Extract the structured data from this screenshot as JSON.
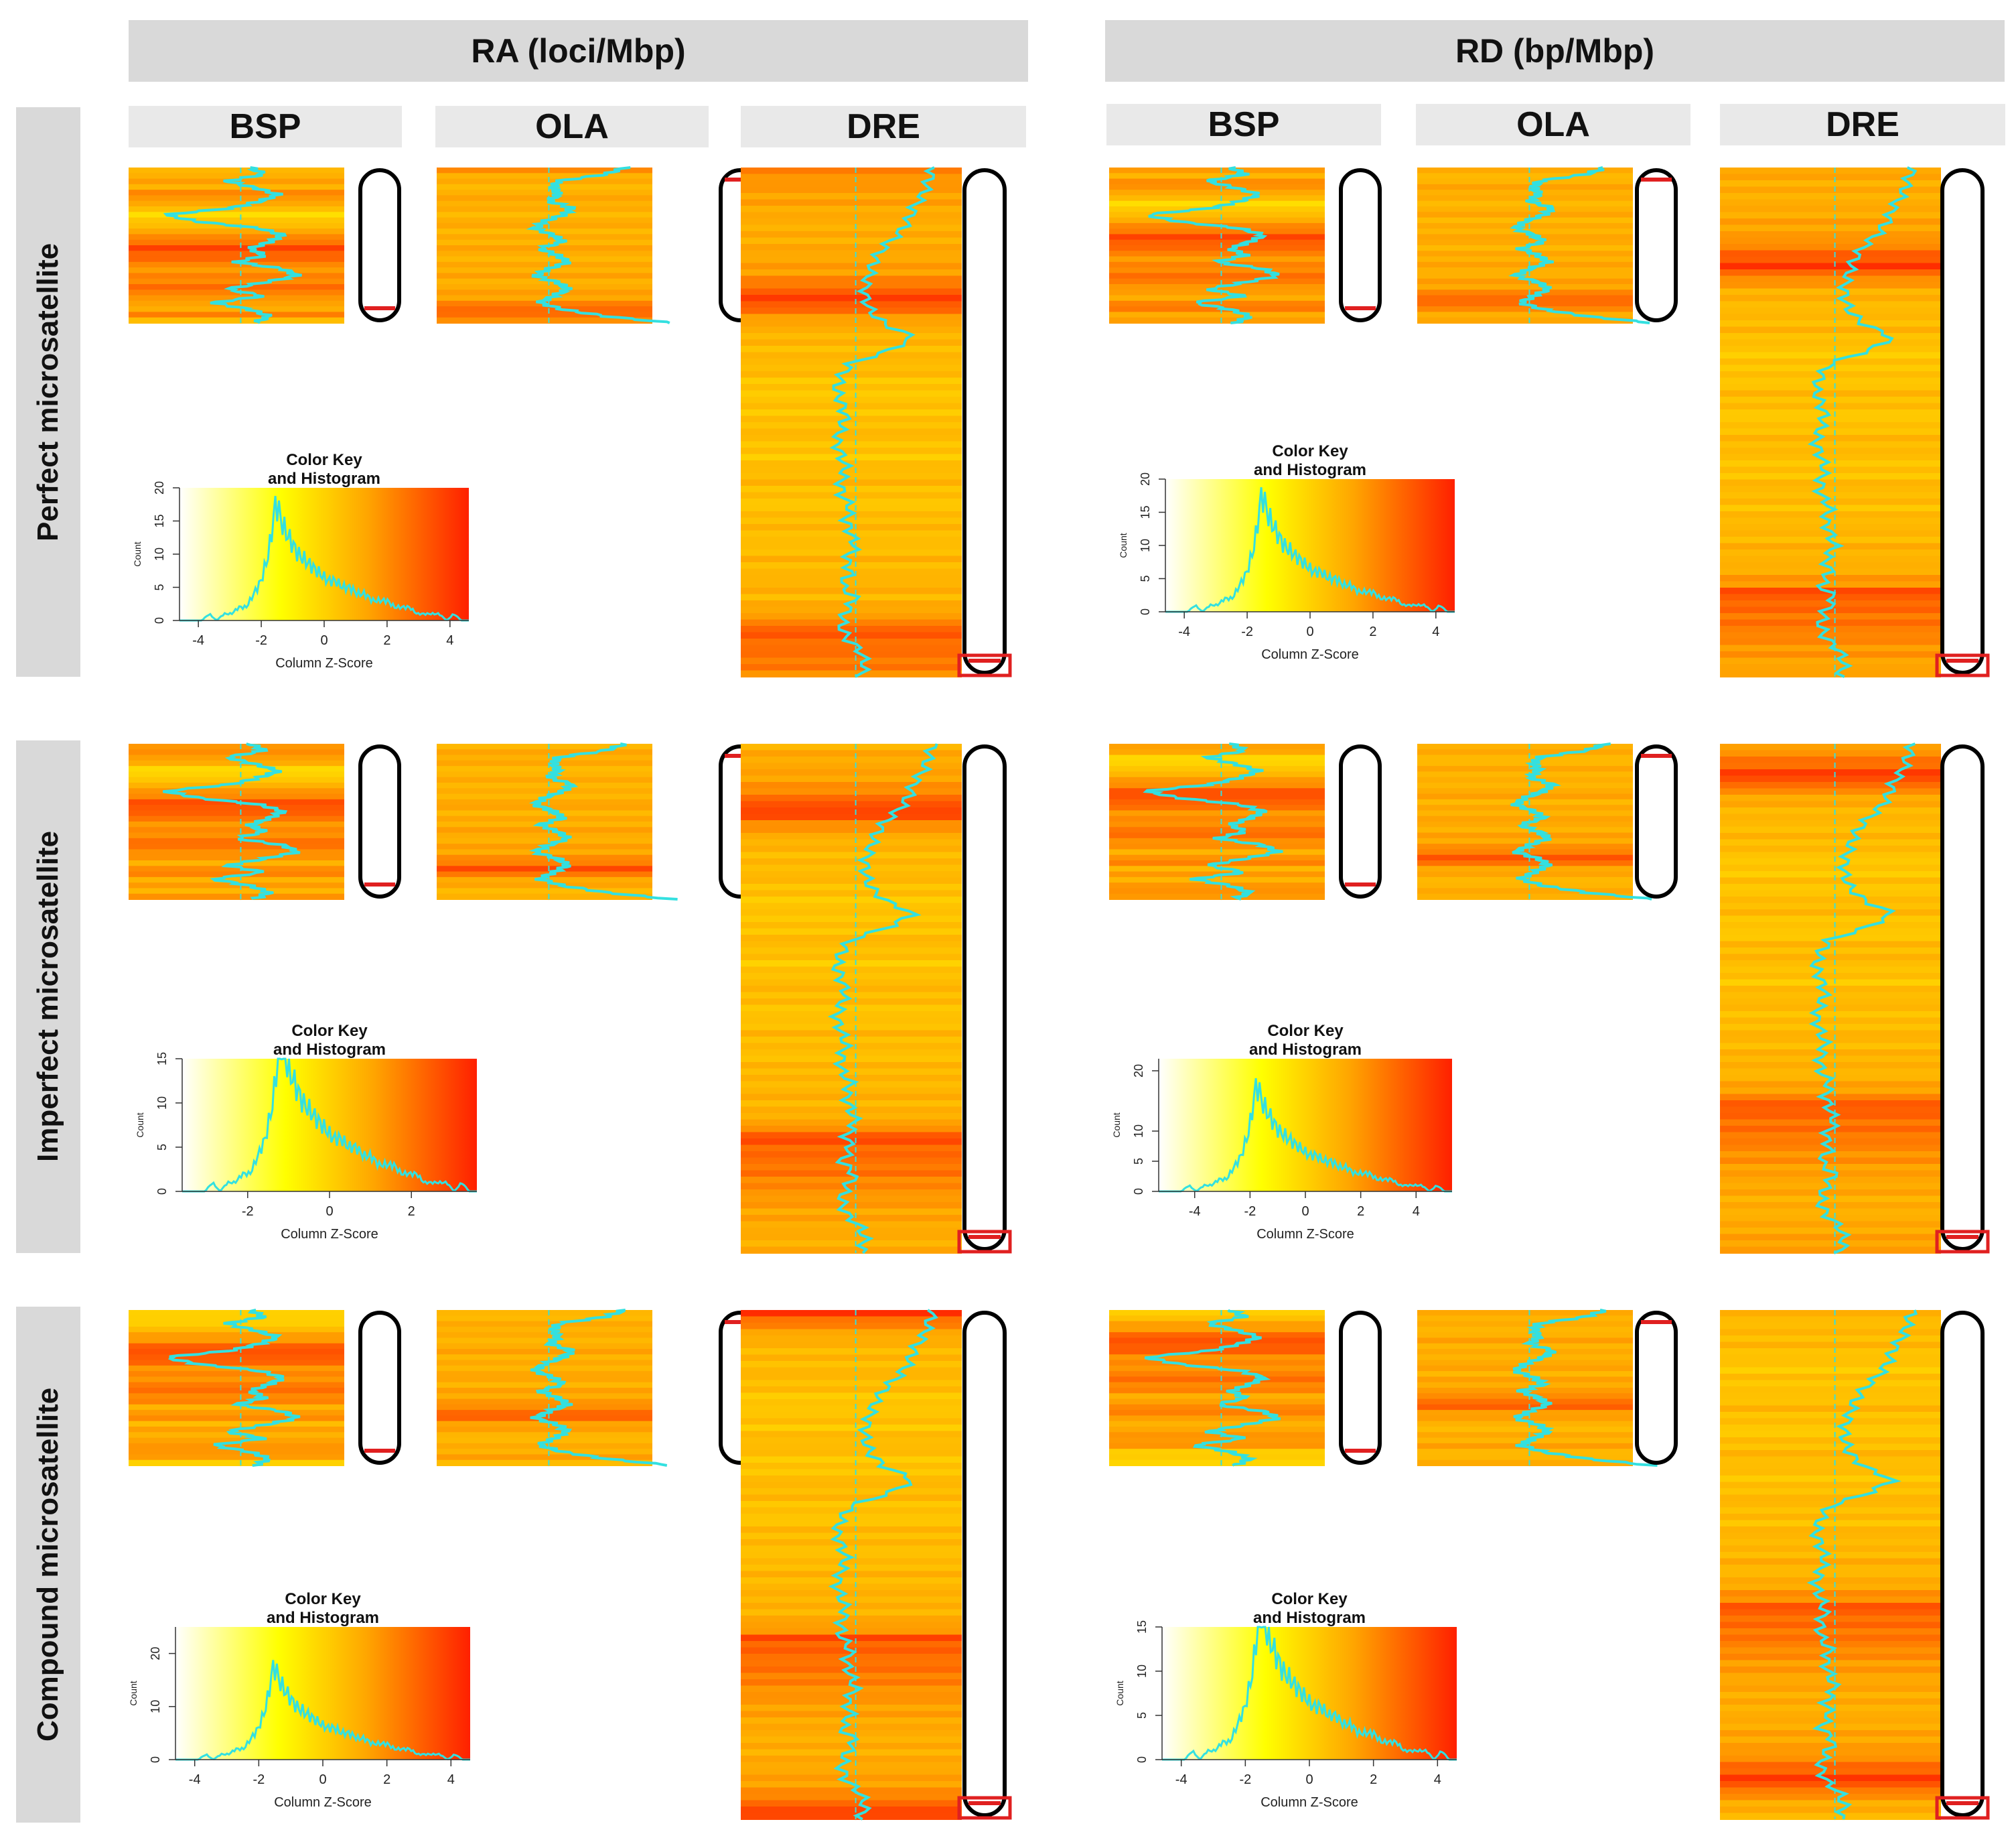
{
  "groups": [
    {
      "id": "RA",
      "label": "RA (loci/Mbp)"
    },
    {
      "id": "RD",
      "label": "RD (bp/Mbp)"
    }
  ],
  "species": [
    "BSP",
    "OLA",
    "DRE"
  ],
  "rows": [
    {
      "id": "perfect",
      "label": "Perfect microsatellite"
    },
    {
      "id": "imperfect",
      "label": "Imperfect microsatellite"
    },
    {
      "id": "compound",
      "label": "Compound microsatellite"
    }
  ],
  "colors": {
    "line": "#33e0e0",
    "heat_low": "#ffff00",
    "heat_mid": "#ffa500",
    "heat_high": "#ff2000",
    "band": "#d9d9d9",
    "marker": "#e02020"
  },
  "chart_data": {
    "type": "heatmap",
    "description_labels": {
      "key_title_1": "Color Key",
      "key_title_2": "and Histogram",
      "xlabel": "Column Z-Score",
      "ylabel": "Count"
    },
    "marker_position": {
      "BSP": "bottom",
      "OLA": "top",
      "DRE": "bottom"
    },
    "color_keys": [
      {
        "row": "perfect",
        "group": "RA",
        "xlim": [
          -4.6,
          4.6
        ],
        "xticks": [
          -4,
          -2,
          0,
          2,
          4
        ],
        "ylim": [
          0,
          20
        ],
        "yticks": [
          0,
          5,
          10,
          15,
          20
        ]
      },
      {
        "row": "perfect",
        "group": "RD",
        "xlim": [
          -4.6,
          4.6
        ],
        "xticks": [
          -4,
          -2,
          0,
          2,
          4
        ],
        "ylim": [
          0,
          20
        ],
        "yticks": [
          0,
          5,
          10,
          15,
          20
        ]
      },
      {
        "row": "imperfect",
        "group": "RA",
        "xlim": [
          -3.6,
          3.6
        ],
        "xticks": [
          -2,
          0,
          2
        ],
        "ylim": [
          0,
          15
        ],
        "yticks": [
          0,
          5,
          10,
          15
        ]
      },
      {
        "row": "imperfect",
        "group": "RD",
        "xlim": [
          -5.3,
          5.3
        ],
        "xticks": [
          -4,
          -2,
          0,
          2,
          4
        ],
        "ylim": [
          0,
          22
        ],
        "yticks": [
          0,
          5,
          10,
          20
        ]
      },
      {
        "row": "compound",
        "group": "RA",
        "xlim": [
          -4.6,
          4.6
        ],
        "xticks": [
          -4,
          -2,
          0,
          2,
          4
        ],
        "ylim": [
          0,
          25
        ],
        "yticks": [
          0,
          10,
          20
        ]
      },
      {
        "row": "compound",
        "group": "RD",
        "xlim": [
          -4.6,
          4.6
        ],
        "xticks": [
          -4,
          -2,
          0,
          2,
          4
        ],
        "ylim": [
          0,
          15
        ],
        "yticks": [
          0,
          5,
          10,
          15
        ]
      }
    ],
    "histogram_profile": [
      0,
      0,
      0,
      0,
      1,
      0,
      1,
      1,
      2,
      2,
      4,
      6,
      10,
      18,
      14,
      12,
      10,
      9,
      8,
      7,
      6,
      6,
      5,
      5,
      4,
      4,
      3,
      3,
      3,
      2,
      2,
      2,
      1,
      1,
      1,
      1,
      0,
      1,
      0,
      0
    ],
    "trace_profiles": {
      "BSP": [
        0.2,
        0.5,
        -0.3,
        0.3,
        0.8,
        0.4,
        -0.2,
        -1.6,
        -0.9,
        0.4,
        0.9,
        0.6,
        0.2,
        0.5,
        -0.1,
        0.9,
        1.2,
        0.5,
        -0.3,
        0.5,
        -0.6,
        0.2,
        0.6,
        0.3
      ],
      "OLA": [
        1.6,
        1.2,
        0.2,
        0.1,
        0.2,
        0.0,
        0.5,
        0.3,
        -0.1,
        -0.3,
        0.1,
        0.3,
        -0.2,
        0.2,
        0.4,
        0.0,
        -0.3,
        0.2,
        0.4,
        0.1,
        -0.2,
        0.3,
        1.2,
        2.6
      ],
      "DRE": [
        1.6,
        1.5,
        1.4,
        1.2,
        1.1,
        0.9,
        0.6,
        0.4,
        0.3,
        0.2,
        0.2,
        0.3,
        0.6,
        1.2,
        0.7,
        -0.1,
        -0.3,
        -0.4,
        -0.3,
        -0.2,
        -0.3,
        -0.4,
        -0.3,
        -0.2,
        -0.3,
        -0.3,
        -0.1,
        -0.2,
        -0.1,
        0.0,
        -0.2,
        -0.1,
        -0.3,
        0.0,
        -0.2,
        -0.3,
        -0.2,
        0.1,
        0.2,
        0.1
      ]
    },
    "heatmap_profiles": {
      "BSP": [
        0.4,
        0.5,
        0.45,
        0.6,
        0.55,
        0.3,
        0.2,
        0.4,
        0.5,
        0.7,
        0.85,
        0.75,
        0.6,
        0.55,
        0.65,
        0.7,
        0.6,
        0.45,
        0.55,
        0.7
      ],
      "OLA": [
        0.75,
        0.55,
        0.45,
        0.4,
        0.45,
        0.5,
        0.4,
        0.42,
        0.48,
        0.4,
        0.45,
        0.5,
        0.42,
        0.45,
        0.5,
        0.44,
        0.48,
        0.52,
        0.6,
        0.9
      ],
      "DRE": [
        0.85,
        0.75,
        0.7,
        0.68,
        0.6,
        0.55,
        0.5,
        0.48,
        0.45,
        0.45,
        0.48,
        0.5,
        0.55,
        0.72,
        0.92,
        0.6,
        0.45,
        0.4,
        0.38,
        0.4,
        0.35,
        0.3,
        0.35,
        0.32,
        0.4,
        0.35,
        0.3,
        0.38,
        0.4,
        0.35,
        0.32,
        0.4,
        0.38,
        0.35,
        0.42,
        0.38,
        0.45,
        0.4,
        0.5,
        0.6
      ]
    }
  }
}
